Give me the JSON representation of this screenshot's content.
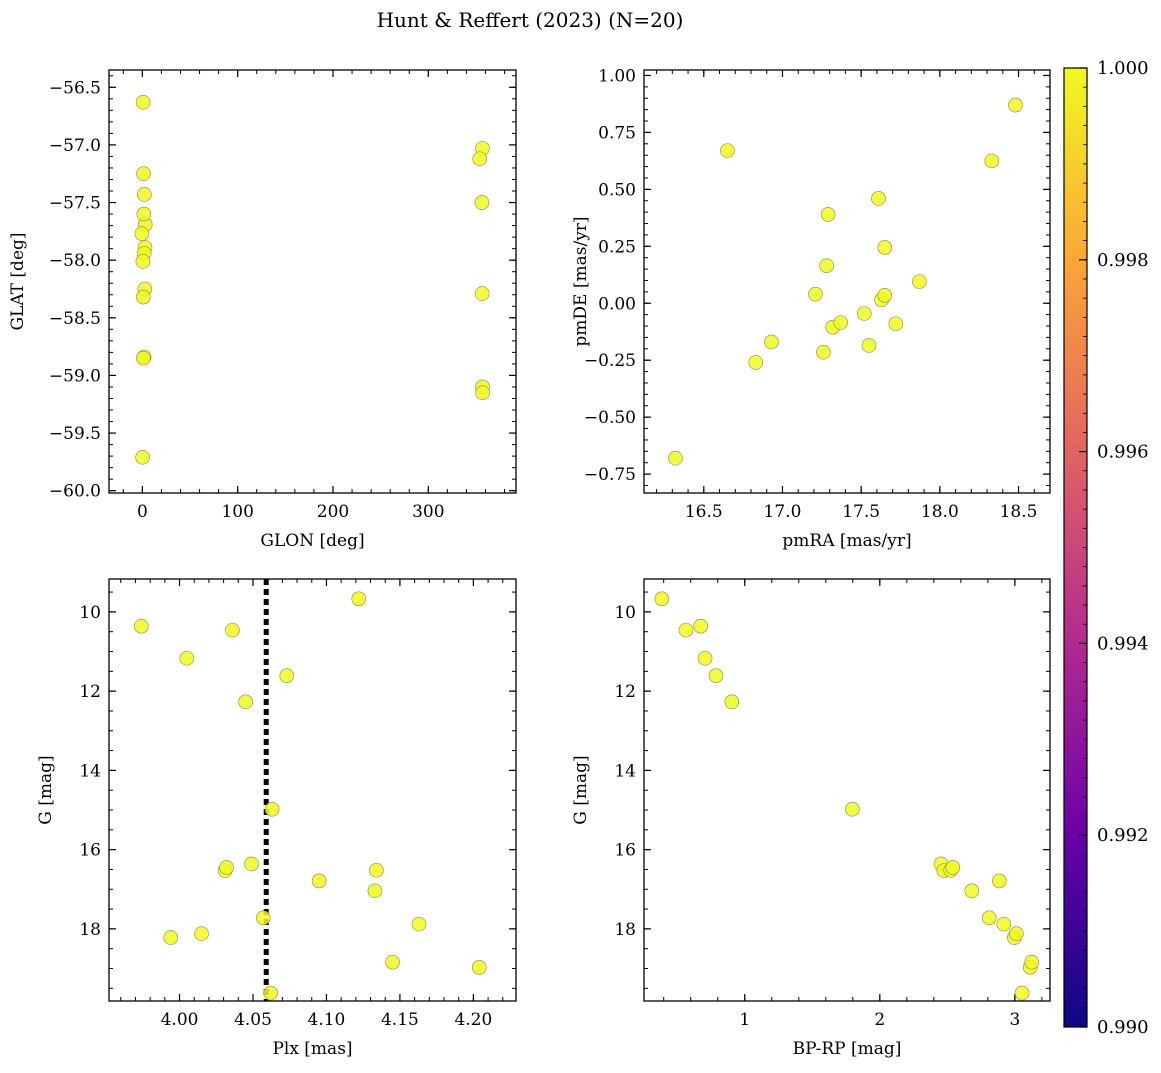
{
  "figure": {
    "title": "Hunt & Reffert (2023) (N=20)"
  },
  "colors": {
    "point_fill": "#f0f921",
    "point_edge": "#8a8a40",
    "vline": "#000000"
  },
  "colorbar": {
    "range": [
      0.99,
      1.0
    ],
    "ticks": [
      0.99,
      0.992,
      0.994,
      0.996,
      0.998,
      1.0
    ],
    "tick_labels": [
      "0.990",
      "0.992",
      "0.994",
      "0.996",
      "0.998",
      "1.000"
    ],
    "stops": [
      "#0d0887",
      "#6a00a8",
      "#b12a90",
      "#e16462",
      "#fca636",
      "#f0f921"
    ]
  },
  "chart_data": [
    {
      "type": "scatter",
      "xlabel": "GLON [deg]",
      "ylabel": "GLAT [deg]",
      "xlim": [
        -35,
        392
      ],
      "ylim": [
        -60.02,
        -56.35
      ],
      "x_ticks": [
        0,
        100,
        200,
        300
      ],
      "x_tick_labels": [
        "0",
        "100",
        "200",
        "300"
      ],
      "x_minor_step": 20,
      "y_ticks": [
        -60.0,
        -59.5,
        -59.0,
        -58.5,
        -58.0,
        -57.5,
        -57.0,
        -56.5
      ],
      "y_tick_labels": [
        "−60.0",
        "−59.5",
        "−59.0",
        "−58.5",
        "−58.0",
        "−57.5",
        "−57.0",
        "−56.5"
      ],
      "y_minor_step": 0.1,
      "invert_y": false,
      "points": [
        {
          "x": 0.8,
          "y": -56.63
        },
        {
          "x": 1.2,
          "y": -57.25
        },
        {
          "x": 2.1,
          "y": -57.43
        },
        {
          "x": 3.0,
          "y": -57.69
        },
        {
          "x": 1.6,
          "y": -57.6
        },
        {
          "x": -0.5,
          "y": -57.77
        },
        {
          "x": 2.8,
          "y": -57.89
        },
        {
          "x": 1.9,
          "y": -57.94
        },
        {
          "x": 0.6,
          "y": -58.01
        },
        {
          "x": 2.6,
          "y": -58.25
        },
        {
          "x": 1.0,
          "y": -58.32
        },
        {
          "x": 1.8,
          "y": -58.84
        },
        {
          "x": 1.1,
          "y": -58.85
        },
        {
          "x": 0.3,
          "y": -59.71
        },
        {
          "x": 356.8,
          "y": -57.03
        },
        {
          "x": 353.9,
          "y": -57.12
        },
        {
          "x": 356.3,
          "y": -57.5
        },
        {
          "x": 356.5,
          "y": -58.29
        },
        {
          "x": 356.9,
          "y": -59.1
        },
        {
          "x": 357.0,
          "y": -59.15
        }
      ]
    },
    {
      "type": "scatter",
      "xlabel": "pmRA [mas/yr]",
      "ylabel": "pmDE [mas/yr]",
      "xlim": [
        16.12,
        18.7
      ],
      "ylim": [
        -0.833,
        1.024
      ],
      "x_ticks": [
        16.5,
        17.0,
        17.5,
        18.0,
        18.5
      ],
      "x_tick_labels": [
        "16.5",
        "17.0",
        "17.5",
        "18.0",
        "18.5"
      ],
      "x_minor_step": 0.1,
      "y_ticks": [
        -0.75,
        -0.5,
        -0.25,
        0.0,
        0.25,
        0.5,
        0.75,
        1.0
      ],
      "y_tick_labels": [
        "−0.75",
        "−0.50",
        "−0.25",
        "0.00",
        "0.25",
        "0.50",
        "0.75",
        "1.00"
      ],
      "y_minor_step": 0.05,
      "invert_y": false,
      "points": [
        {
          "x": 16.32,
          "y": -0.68
        },
        {
          "x": 16.65,
          "y": 0.67
        },
        {
          "x": 16.83,
          "y": -0.26
        },
        {
          "x": 16.93,
          "y": -0.17
        },
        {
          "x": 17.21,
          "y": 0.04
        },
        {
          "x": 17.26,
          "y": -0.215
        },
        {
          "x": 17.28,
          "y": 0.165
        },
        {
          "x": 17.29,
          "y": 0.39
        },
        {
          "x": 17.32,
          "y": -0.105
        },
        {
          "x": 17.37,
          "y": -0.085
        },
        {
          "x": 17.52,
          "y": -0.045
        },
        {
          "x": 17.55,
          "y": -0.185
        },
        {
          "x": 17.61,
          "y": 0.46
        },
        {
          "x": 17.63,
          "y": 0.015
        },
        {
          "x": 17.65,
          "y": 0.035
        },
        {
          "x": 17.65,
          "y": 0.245
        },
        {
          "x": 17.72,
          "y": -0.09
        },
        {
          "x": 17.87,
          "y": 0.095
        },
        {
          "x": 18.33,
          "y": 0.625
        },
        {
          "x": 18.48,
          "y": 0.87
        }
      ]
    },
    {
      "type": "scatter",
      "xlabel": "Plx [mas]",
      "ylabel": "G [mag]",
      "xlim": [
        3.952,
        4.229
      ],
      "ylim": [
        9.17,
        19.82
      ],
      "x_ticks": [
        4.0,
        4.05,
        4.1,
        4.15,
        4.2
      ],
      "x_tick_labels": [
        "4.00",
        "4.05",
        "4.10",
        "4.15",
        "4.20"
      ],
      "x_minor_step": 0.01,
      "y_ticks": [
        10,
        12,
        14,
        16,
        18
      ],
      "y_tick_labels": [
        "10",
        "12",
        "14",
        "16",
        "18"
      ],
      "y_minor_step": 0.5,
      "invert_y": true,
      "vline": 4.059,
      "points": [
        {
          "x": 3.974,
          "y": 10.36
        },
        {
          "x": 3.994,
          "y": 18.22
        },
        {
          "x": 4.005,
          "y": 11.17
        },
        {
          "x": 4.015,
          "y": 18.12
        },
        {
          "x": 4.031,
          "y": 16.53
        },
        {
          "x": 4.032,
          "y": 16.45
        },
        {
          "x": 4.036,
          "y": 10.46
        },
        {
          "x": 4.045,
          "y": 12.27
        },
        {
          "x": 4.049,
          "y": 16.36
        },
        {
          "x": 4.057,
          "y": 17.72
        },
        {
          "x": 4.062,
          "y": 19.62
        },
        {
          "x": 4.063,
          "y": 14.98
        },
        {
          "x": 4.073,
          "y": 11.61
        },
        {
          "x": 4.095,
          "y": 16.79
        },
        {
          "x": 4.122,
          "y": 9.67
        },
        {
          "x": 4.133,
          "y": 17.04
        },
        {
          "x": 4.134,
          "y": 16.52
        },
        {
          "x": 4.145,
          "y": 18.84
        },
        {
          "x": 4.163,
          "y": 17.88
        },
        {
          "x": 4.204,
          "y": 18.97
        }
      ]
    },
    {
      "type": "scatter",
      "xlabel": "BP-RP [mag]",
      "ylabel": "G [mag]",
      "xlim": [
        0.254,
        3.26
      ],
      "ylim": [
        9.17,
        19.82
      ],
      "x_ticks": [
        1,
        2,
        3
      ],
      "x_tick_labels": [
        "1",
        "2",
        "3"
      ],
      "x_minor_step": 0.2,
      "y_ticks": [
        10,
        12,
        14,
        16,
        18
      ],
      "y_tick_labels": [
        "10",
        "12",
        "14",
        "16",
        "18"
      ],
      "y_minor_step": 0.5,
      "invert_y": true,
      "points": [
        {
          "x": 0.386,
          "y": 9.67
        },
        {
          "x": 0.565,
          "y": 10.46
        },
        {
          "x": 0.674,
          "y": 10.36
        },
        {
          "x": 0.706,
          "y": 11.17
        },
        {
          "x": 0.787,
          "y": 11.61
        },
        {
          "x": 0.904,
          "y": 12.27
        },
        {
          "x": 1.797,
          "y": 14.98
        },
        {
          "x": 2.453,
          "y": 16.36
        },
        {
          "x": 2.474,
          "y": 16.53
        },
        {
          "x": 2.525,
          "y": 16.52
        },
        {
          "x": 2.54,
          "y": 16.45
        },
        {
          "x": 2.681,
          "y": 17.04
        },
        {
          "x": 2.81,
          "y": 17.72
        },
        {
          "x": 2.885,
          "y": 16.79
        },
        {
          "x": 2.918,
          "y": 17.88
        },
        {
          "x": 2.996,
          "y": 18.22
        },
        {
          "x": 3.011,
          "y": 18.12
        },
        {
          "x": 3.053,
          "y": 19.62
        },
        {
          "x": 3.114,
          "y": 18.97
        },
        {
          "x": 3.125,
          "y": 18.84
        }
      ]
    }
  ]
}
